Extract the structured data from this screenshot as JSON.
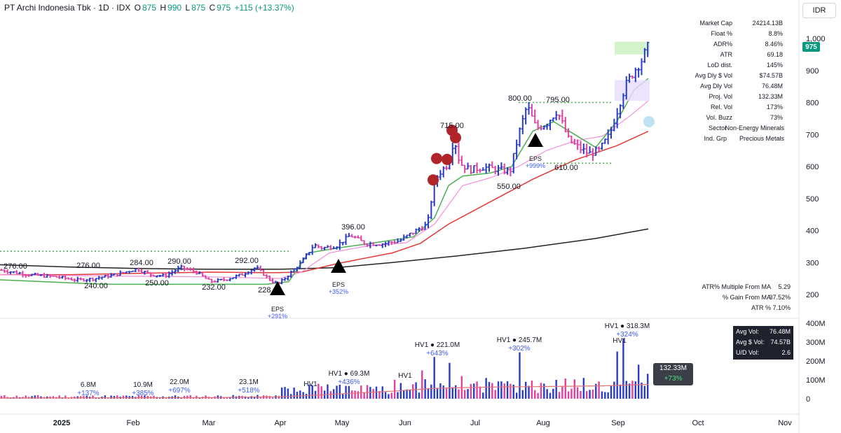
{
  "header": {
    "title": "PT Archi Indonesia Tbk · 1D · IDX",
    "o_label": "O",
    "o_value": "875",
    "h_label": "H",
    "h_value": "990",
    "l_label": "L",
    "l_value": "875",
    "c_label": "C",
    "c_value": "975",
    "change": "+115 (+13.37%)"
  },
  "currency": "IDR",
  "last_price_tag": "975",
  "stats": [
    {
      "k": "Market Cap",
      "v": "24214.13B"
    },
    {
      "k": "Float %",
      "v": "8.8%"
    },
    {
      "k": "ADR%",
      "v": "8.46%"
    },
    {
      "k": "ATR",
      "v": "69.18"
    },
    {
      "k": "LoD dist.",
      "v": "145%"
    },
    {
      "k": "Avg Dly $ Vol",
      "v": "$74.57B"
    },
    {
      "k": "Avg Dly Vol",
      "v": "76.48M"
    },
    {
      "k": "Proj. Vol",
      "v": "132.33M"
    },
    {
      "k": "Rel. Vol",
      "v": "173%"
    },
    {
      "k": "Vol. Buzz",
      "v": "73%"
    },
    {
      "k": "Sector",
      "v": "Non-Energy Minerals"
    },
    {
      "k": "Ind. Grp",
      "v": "Precious Metals"
    }
  ],
  "stats2": [
    {
      "k": "ATR% Multiple From MA",
      "v": "5.29"
    },
    {
      "k": "% Gain From MA",
      "v": "37.52%"
    },
    {
      "k": "ATR %",
      "v": "7.10%"
    }
  ],
  "volbox": [
    {
      "k": "Avg Vol:",
      "v": "76.48M"
    },
    {
      "k": "Avg $ Vol:",
      "v": "74.57B"
    },
    {
      "k": "U/D Vol:",
      "v": "2.6"
    }
  ],
  "vol_tag": {
    "value": "132.33M",
    "pct": "+73%"
  },
  "chart_data": {
    "type": "candlestick",
    "y_ticks": [
      "1,000",
      "900",
      "800",
      "700",
      "600",
      "500",
      "400",
      "300",
      "200"
    ],
    "y_tick_values": [
      1000,
      900,
      800,
      700,
      600,
      500,
      400,
      300,
      200
    ],
    "ylim": [
      160,
      1060
    ],
    "vol_ticks": [
      "400M",
      "300M",
      "200M",
      "100M",
      "0"
    ],
    "vol_tick_values": [
      400,
      300,
      200,
      100,
      0
    ],
    "vol_ylim": [
      0,
      410
    ],
    "x_ticks": [
      "2025",
      "Feb",
      "Mar",
      "Apr",
      "May",
      "Jun",
      "Jul",
      "Aug",
      "Sep",
      "Oct",
      "Nov"
    ],
    "colors": {
      "up": "#2a3cc7",
      "down": "#e040a0",
      "ma10": "#4caf50",
      "ma21": "#f48fda",
      "ma50": "#e53935",
      "ma200": "#222222",
      "vol_ma": "#e57373"
    },
    "price_labels": [
      {
        "text": "276.00",
        "price": 276
      },
      {
        "text": "240.00",
        "price": 240
      },
      {
        "text": "276.00",
        "price": 276
      },
      {
        "text": "284.00",
        "price": 284
      },
      {
        "text": "250.00",
        "price": 250
      },
      {
        "text": "290.00",
        "price": 290
      },
      {
        "text": "232.00",
        "price": 232
      },
      {
        "text": "292.00",
        "price": 292
      },
      {
        "text": "228.00",
        "price": 228
      },
      {
        "text": "396.00",
        "price": 396
      },
      {
        "text": "715.00",
        "price": 715
      },
      {
        "text": "800.00",
        "price": 800
      },
      {
        "text": "550.00",
        "price": 550
      },
      {
        "text": "795.00",
        "price": 795
      },
      {
        "text": "610.00",
        "price": 610
      }
    ],
    "eps_markers": [
      {
        "label": "EPS",
        "pct": "+291%"
      },
      {
        "label": "EPS",
        "pct": "+352%"
      },
      {
        "label": "EPS",
        "pct": "+999%"
      }
    ],
    "volume_labels": [
      {
        "value": "6.8M",
        "pct": "+137%"
      },
      {
        "value": "10.9M",
        "pct": "+385%"
      },
      {
        "value": "22.0M",
        "pct": "+697%"
      },
      {
        "value": "23.1M",
        "pct": "+518%"
      },
      {
        "value": "HV1",
        "pct": ""
      },
      {
        "value": "HV1 ● 69.3M",
        "pct": "+436%"
      },
      {
        "value": "HV1",
        "pct": ""
      },
      {
        "value": "HV1 ● 221.0M",
        "pct": "+643%"
      },
      {
        "value": "HV1 ● 245.7M",
        "pct": "+302%"
      },
      {
        "value": "HV1 ● 318.3M",
        "pct": "+324%"
      },
      {
        "value": "HV1",
        "pct": ""
      }
    ],
    "dotted_levels": [
      335,
      800,
      610
    ]
  }
}
